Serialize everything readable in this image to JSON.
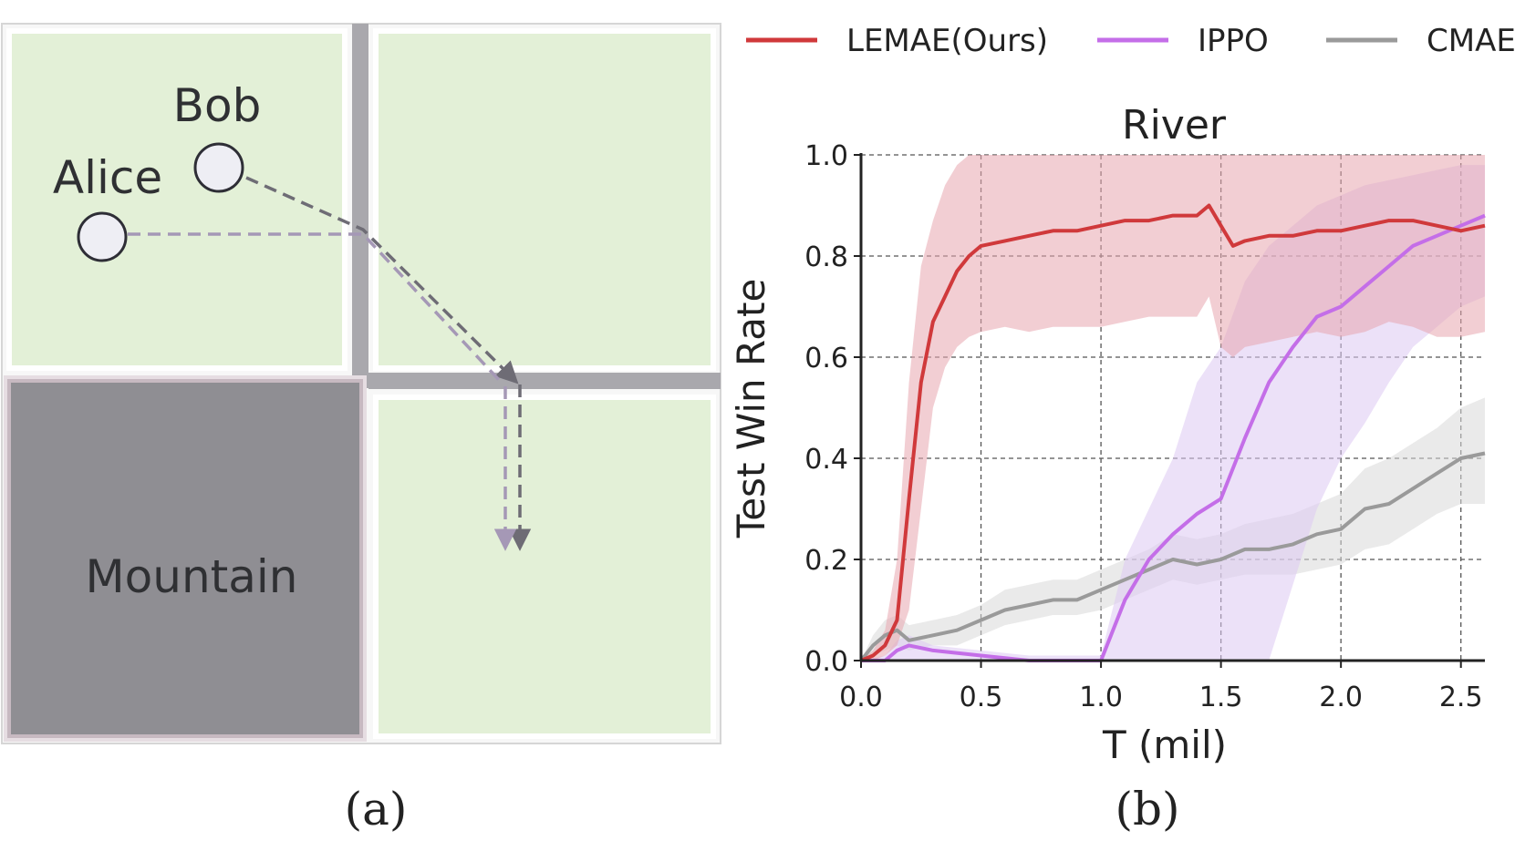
{
  "panel_a": {
    "caption": "(a)",
    "agents": [
      {
        "label": "Bob"
      },
      {
        "label": "Alice"
      }
    ],
    "mountain_label": "Mountain",
    "colors": {
      "grass": "#e3f0d7",
      "mountain": "#8f8e93",
      "river": "#a9a8ad",
      "bob_path": "#6e6c75",
      "alice_path": "#a598b6"
    }
  },
  "panel_b": {
    "caption": "(b)"
  },
  "chart_data": {
    "type": "line",
    "title": "River",
    "xlabel": "T (mil)",
    "ylabel": "Test Win Rate",
    "xlim": [
      0,
      2.6
    ],
    "ylim": [
      0,
      1.0
    ],
    "xticks": [
      "0.0",
      "0.5",
      "1.0",
      "1.5",
      "2.0",
      "2.5"
    ],
    "yticks": [
      "0.0",
      "0.2",
      "0.4",
      "0.6",
      "0.8",
      "1.0"
    ],
    "grid": true,
    "legend_position": "top",
    "series": [
      {
        "name": "LEMAE(Ours)",
        "color": "#d0393b",
        "band_color": "#e7a5ae",
        "x": [
          0,
          0.05,
          0.1,
          0.15,
          0.2,
          0.25,
          0.3,
          0.35,
          0.4,
          0.45,
          0.5,
          0.6,
          0.7,
          0.8,
          0.9,
          1.0,
          1.1,
          1.2,
          1.3,
          1.4,
          1.45,
          1.5,
          1.55,
          1.6,
          1.7,
          1.8,
          1.9,
          2.0,
          2.1,
          2.2,
          2.3,
          2.4,
          2.5,
          2.6
        ],
        "y": [
          0,
          0.01,
          0.03,
          0.08,
          0.32,
          0.55,
          0.67,
          0.72,
          0.77,
          0.8,
          0.82,
          0.83,
          0.84,
          0.85,
          0.85,
          0.86,
          0.87,
          0.87,
          0.88,
          0.88,
          0.9,
          0.86,
          0.82,
          0.83,
          0.84,
          0.84,
          0.85,
          0.85,
          0.86,
          0.87,
          0.87,
          0.86,
          0.85,
          0.86
        ],
        "lower": [
          0,
          0,
          0.01,
          0.03,
          0.1,
          0.3,
          0.5,
          0.58,
          0.62,
          0.64,
          0.65,
          0.66,
          0.65,
          0.66,
          0.66,
          0.66,
          0.67,
          0.68,
          0.68,
          0.68,
          0.72,
          0.62,
          0.6,
          0.62,
          0.63,
          0.64,
          0.65,
          0.64,
          0.65,
          0.67,
          0.66,
          0.64,
          0.64,
          0.65
        ],
        "upper": [
          0,
          0.02,
          0.06,
          0.2,
          0.55,
          0.78,
          0.87,
          0.94,
          0.98,
          1.0,
          1.0,
          1.0,
          1.0,
          1.0,
          1.0,
          1.0,
          1.0,
          1.0,
          1.0,
          1.0,
          1.0,
          1.0,
          1.0,
          1.0,
          1.0,
          1.0,
          1.0,
          1.0,
          1.0,
          1.0,
          1.0,
          1.0,
          1.0,
          1.0
        ]
      },
      {
        "name": "IPPO",
        "color": "#c46ee8",
        "band_color": "#dcc8f2",
        "x": [
          0,
          0.1,
          0.15,
          0.2,
          0.3,
          0.5,
          0.7,
          0.9,
          1.0,
          1.1,
          1.2,
          1.3,
          1.4,
          1.5,
          1.6,
          1.7,
          1.8,
          1.9,
          2.0,
          2.1,
          2.2,
          2.3,
          2.4,
          2.5,
          2.6
        ],
        "y": [
          0,
          0.0,
          0.02,
          0.03,
          0.02,
          0.01,
          0.0,
          0.0,
          0.0,
          0.12,
          0.2,
          0.25,
          0.29,
          0.32,
          0.44,
          0.55,
          0.62,
          0.68,
          0.7,
          0.74,
          0.78,
          0.82,
          0.84,
          0.86,
          0.88
        ],
        "lower": [
          0,
          0,
          0,
          0,
          0,
          0,
          0,
          0,
          0,
          0,
          0,
          0,
          0,
          0,
          0,
          0,
          0.15,
          0.3,
          0.4,
          0.47,
          0.55,
          0.62,
          0.66,
          0.7,
          0.72
        ],
        "upper": [
          0,
          0.01,
          0.04,
          0.05,
          0.03,
          0.02,
          0.01,
          0.01,
          0.01,
          0.2,
          0.3,
          0.4,
          0.55,
          0.62,
          0.75,
          0.82,
          0.86,
          0.9,
          0.92,
          0.94,
          0.95,
          0.96,
          0.97,
          0.98,
          0.98
        ]
      },
      {
        "name": "CMAE",
        "color": "#9a9a9a",
        "band_color": "#d8d8d8",
        "x": [
          0,
          0.05,
          0.1,
          0.15,
          0.2,
          0.3,
          0.4,
          0.5,
          0.6,
          0.7,
          0.8,
          0.9,
          1.0,
          1.1,
          1.2,
          1.3,
          1.4,
          1.5,
          1.6,
          1.7,
          1.8,
          1.9,
          2.0,
          2.1,
          2.2,
          2.3,
          2.4,
          2.5,
          2.6
        ],
        "y": [
          0,
          0.03,
          0.05,
          0.06,
          0.04,
          0.05,
          0.06,
          0.08,
          0.1,
          0.11,
          0.12,
          0.12,
          0.14,
          0.16,
          0.18,
          0.2,
          0.19,
          0.2,
          0.22,
          0.22,
          0.23,
          0.25,
          0.26,
          0.3,
          0.31,
          0.34,
          0.37,
          0.4,
          0.41
        ],
        "lower": [
          0,
          0.01,
          0.02,
          0.03,
          0.02,
          0.03,
          0.03,
          0.05,
          0.07,
          0.08,
          0.09,
          0.09,
          0.1,
          0.12,
          0.14,
          0.16,
          0.15,
          0.16,
          0.17,
          0.17,
          0.17,
          0.18,
          0.19,
          0.22,
          0.23,
          0.26,
          0.29,
          0.31,
          0.31
        ],
        "upper": [
          0,
          0.05,
          0.08,
          0.09,
          0.07,
          0.08,
          0.09,
          0.11,
          0.14,
          0.15,
          0.16,
          0.16,
          0.18,
          0.2,
          0.22,
          0.25,
          0.24,
          0.25,
          0.27,
          0.28,
          0.29,
          0.31,
          0.33,
          0.38,
          0.4,
          0.43,
          0.46,
          0.5,
          0.52
        ]
      }
    ]
  }
}
